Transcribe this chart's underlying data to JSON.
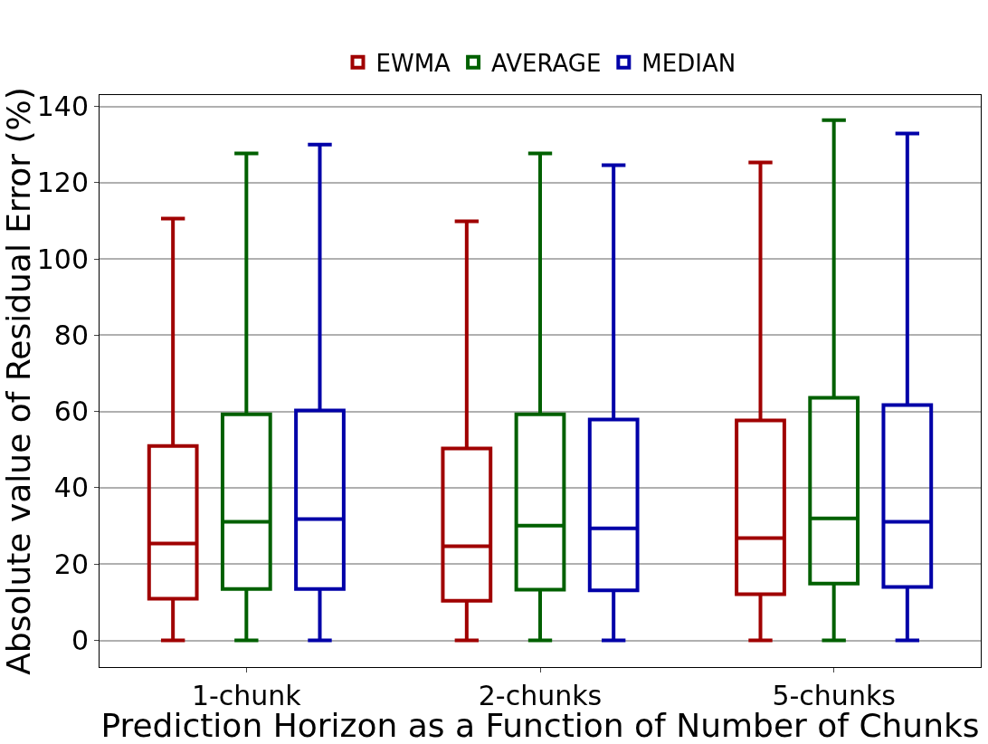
{
  "chart_data": {
    "type": "box",
    "xlabel": "Prediction Horizon as a Function of Number of Chunks",
    "ylabel": "Absolute value of Residual Error (%)",
    "categories": [
      "1-chunk",
      "2-chunks",
      "5-chunks"
    ],
    "ylim": [
      -7,
      143
    ],
    "yticks": [
      0,
      20,
      40,
      60,
      80,
      100,
      120,
      140
    ],
    "grid": "y",
    "legend": "top",
    "series": [
      {
        "name": "EWMA",
        "color": "#a00000",
        "boxes": [
          {
            "low": 0,
            "q1": 10.9,
            "median": 25.4,
            "q3": 51,
            "high": 110.6
          },
          {
            "low": 0,
            "q1": 10.4,
            "median": 24.7,
            "q3": 50.3,
            "high": 109.9
          },
          {
            "low": 0,
            "q1": 12.1,
            "median": 26.8,
            "q3": 57.7,
            "high": 125.3
          }
        ]
      },
      {
        "name": "AVERAGE",
        "color": "#006000",
        "boxes": [
          {
            "low": 0,
            "q1": 13.5,
            "median": 31.1,
            "q3": 59.3,
            "high": 127.7
          },
          {
            "low": 0,
            "q1": 13.3,
            "median": 30.1,
            "q3": 59.3,
            "high": 127.7
          },
          {
            "low": 0,
            "q1": 14.9,
            "median": 32,
            "q3": 63.6,
            "high": 136.4
          }
        ]
      },
      {
        "name": "MEDIAN",
        "color": "#0000a8",
        "boxes": [
          {
            "low": 0,
            "q1": 13.5,
            "median": 31.8,
            "q3": 60.3,
            "high": 130
          },
          {
            "low": 0,
            "q1": 13.1,
            "median": 29.4,
            "q3": 57.9,
            "high": 124.6
          },
          {
            "low": 0,
            "q1": 14,
            "median": 31.1,
            "q3": 61.7,
            "high": 132.9
          }
        ]
      }
    ]
  }
}
